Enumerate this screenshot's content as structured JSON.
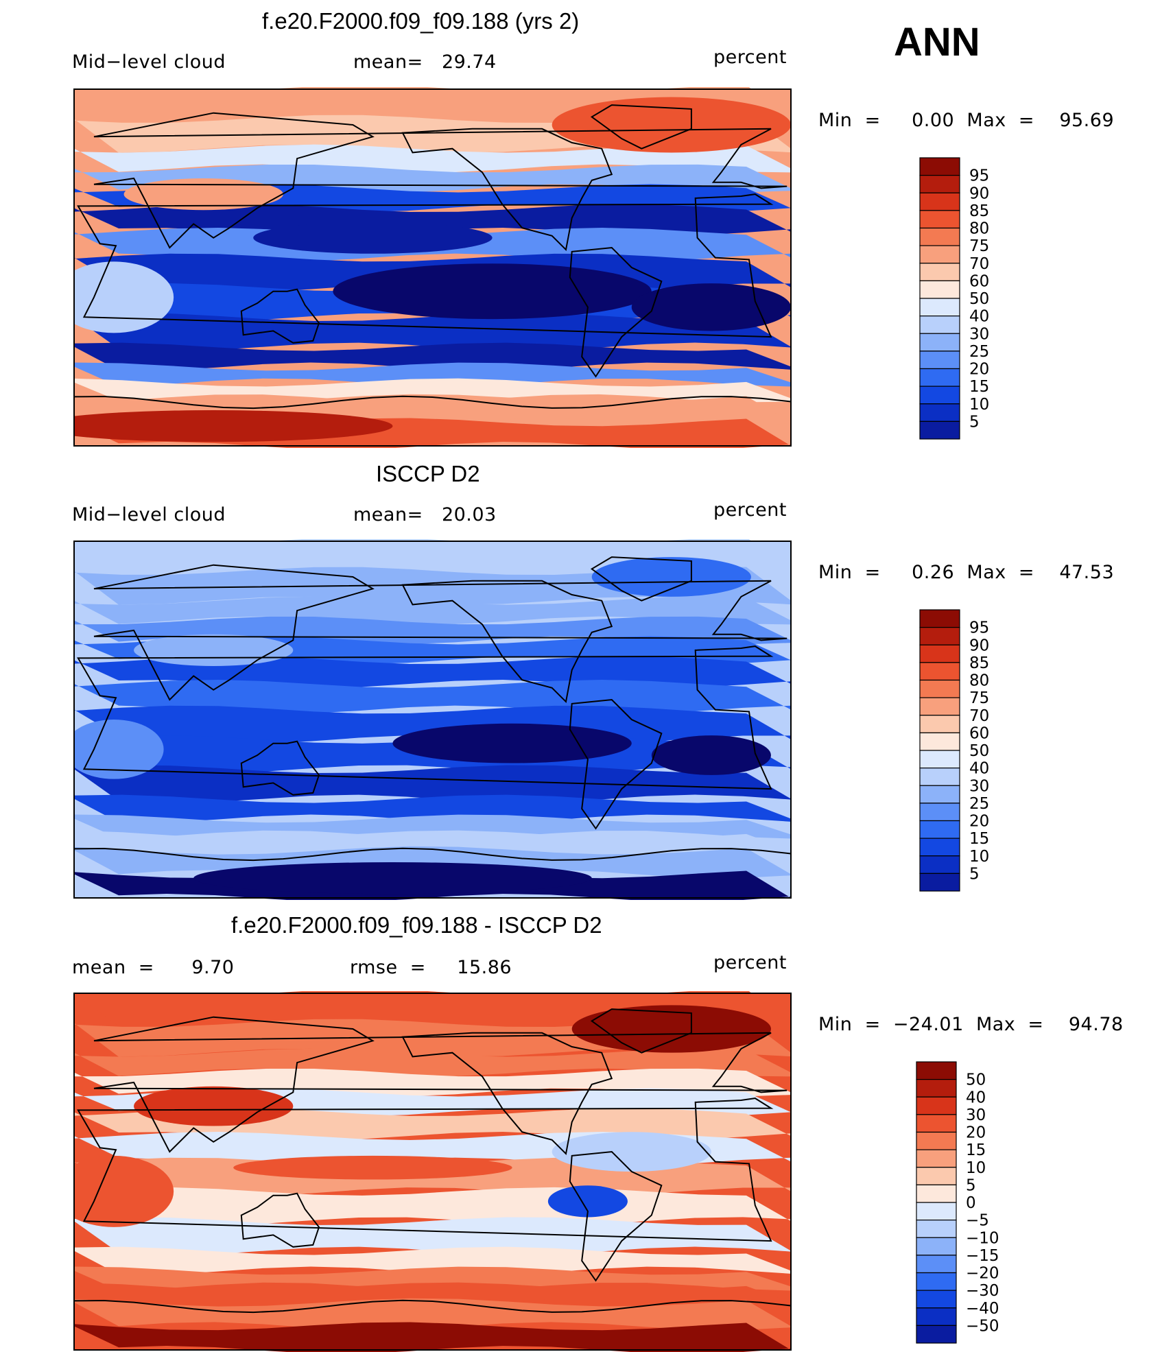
{
  "season": "ANN",
  "colors": {
    "diverging": [
      "#08076b",
      "#0a1ca0",
      "#0b2fc4",
      "#1348e2",
      "#2f6bf2",
      "#5c8ff7",
      "#8cb2f9",
      "#b8d0fb",
      "#dce9fd",
      "#fde8dc",
      "#fbc9ae",
      "#f8a07d",
      "#f37a52",
      "#ec5430",
      "#d8341a",
      "#b41d0d",
      "#8c0c04"
    ]
  },
  "chart_data": [
    {
      "type": "heatmap",
      "title": "f.e20.F2000.f09_f09.188 (yrs 2)",
      "left_label": "Mid−level cloud",
      "center_label": "mean=   29.74",
      "units": "percent",
      "min_max": "Min  =     0.00  Max  =    95.69",
      "colorbar_levels": [
        "95",
        "90",
        "85",
        "80",
        "75",
        "70",
        "60",
        "50",
        "40",
        "30",
        "25",
        "20",
        "15",
        "10",
        "5"
      ]
    },
    {
      "type": "heatmap",
      "title": "ISCCP D2",
      "left_label": "Mid−level cloud",
      "center_label": "mean=   20.03",
      "units": "percent",
      "min_max": "Min  =     0.26  Max  =    47.53",
      "colorbar_levels": [
        "95",
        "90",
        "85",
        "80",
        "75",
        "70",
        "60",
        "50",
        "40",
        "30",
        "25",
        "20",
        "15",
        "10",
        "5"
      ]
    },
    {
      "type": "heatmap",
      "title": "f.e20.F2000.f09_f09.188 - ISCCP D2",
      "left_label": "mean  =      9.70",
      "center_label": "rmse  =     15.86",
      "units": "percent",
      "min_max": "Min  =  −24.01  Max  =    94.78",
      "colorbar_levels": [
        "50",
        "40",
        "30",
        "20",
        "15",
        "10",
        "5",
        "0",
        "−5",
        "−10",
        "−15",
        "−20",
        "−30",
        "−40",
        "−50"
      ]
    }
  ]
}
